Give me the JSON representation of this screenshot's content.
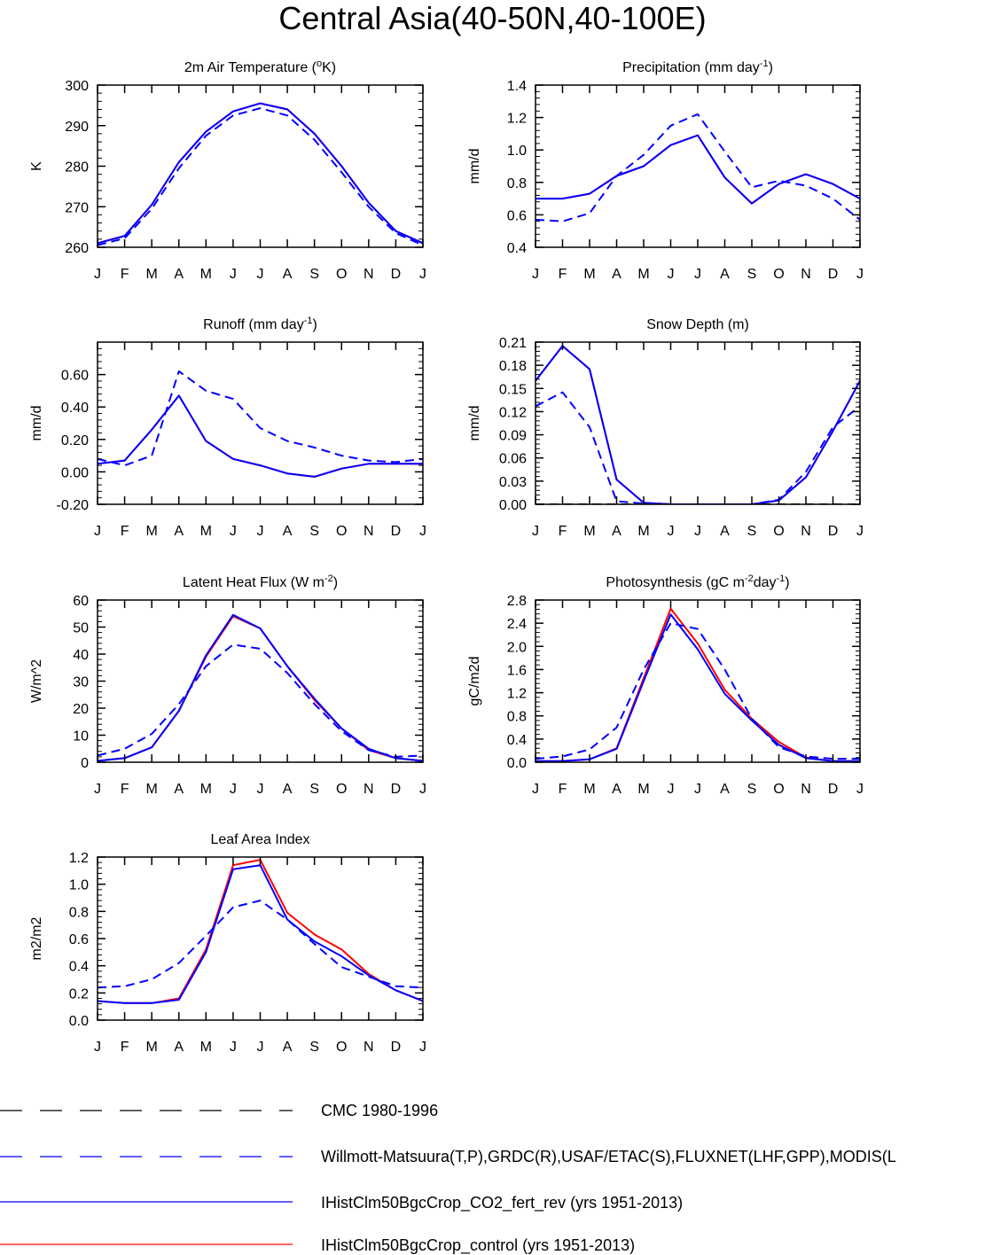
{
  "figure": {
    "title": "Central Asia(40-50N,40-100E)",
    "months": [
      "J",
      "F",
      "M",
      "A",
      "M",
      "J",
      "J",
      "A",
      "S",
      "O",
      "N",
      "D",
      "J"
    ]
  },
  "legend": [
    {
      "label": "CMC 1980-1996",
      "color": "#000000",
      "dash": "dashed"
    },
    {
      "label": "Willmott-Matsuura(T,P),GRDC(R),USAF/ETAC(S),FLUXNET(LHF,GPP),MODIS(L",
      "color": "#0000ff",
      "dash": "dashed"
    },
    {
      "label": "IHistClm50BgcCrop_CO2_fert_rev (yrs 1951-2013)",
      "color": "#0000ff",
      "dash": "solid"
    },
    {
      "label": "IHistClm50BgcCrop_control (yrs 1951-2013)",
      "color": "#ff0000",
      "dash": "solid"
    }
  ],
  "chart_data": [
    {
      "type": "line",
      "title": "2m Air Temperature (",
      "title_sup": "o",
      "title_tail": "K)",
      "ylabel": "K",
      "ylim": [
        260,
        300
      ],
      "yticks": [
        260,
        270,
        280,
        290,
        300
      ],
      "ytick_labels": [
        "260",
        "270",
        "280",
        "290",
        "300"
      ],
      "series": [
        {
          "color": "#ff0000",
          "dash": "solid",
          "values": [
            261.0,
            262.8,
            270.5,
            281.0,
            288.5,
            293.5,
            295.5,
            294.0,
            288.0,
            280.0,
            271.0,
            264.0,
            261.0
          ]
        },
        {
          "color": "#0000ff",
          "dash": "solid",
          "values": [
            261.0,
            262.8,
            270.5,
            281.0,
            288.5,
            293.5,
            295.5,
            294.0,
            288.0,
            280.0,
            271.0,
            264.0,
            261.0
          ]
        },
        {
          "color": "#0000ff",
          "dash": "dashed",
          "values": [
            260.5,
            262.2,
            269.5,
            279.5,
            287.5,
            292.5,
            294.3,
            292.5,
            286.5,
            278.5,
            270.0,
            263.5,
            260.5
          ]
        }
      ]
    },
    {
      "type": "line",
      "title": "Precipitation (mm day",
      "title_sup": "-1",
      "title_tail": ")",
      "ylabel": "mm/d",
      "ylim": [
        0.4,
        1.4
      ],
      "yticks": [
        0.4,
        0.6,
        0.8,
        1.0,
        1.2,
        1.4
      ],
      "ytick_labels": [
        "0.4",
        "0.6",
        "0.8",
        "1.0",
        "1.2",
        "1.4"
      ],
      "series": [
        {
          "color": "#ff0000",
          "dash": "solid",
          "values": [
            0.7,
            0.7,
            0.73,
            0.84,
            0.9,
            1.03,
            1.09,
            0.83,
            0.67,
            0.79,
            0.85,
            0.79,
            0.7
          ]
        },
        {
          "color": "#0000ff",
          "dash": "solid",
          "values": [
            0.7,
            0.7,
            0.73,
            0.84,
            0.9,
            1.03,
            1.09,
            0.83,
            0.67,
            0.79,
            0.85,
            0.79,
            0.7
          ]
        },
        {
          "color": "#0000ff",
          "dash": "dashed",
          "values": [
            0.57,
            0.56,
            0.61,
            0.84,
            0.97,
            1.15,
            1.22,
            0.99,
            0.77,
            0.81,
            0.78,
            0.7,
            0.57
          ]
        }
      ]
    },
    {
      "type": "line",
      "title": "Runoff (mm day",
      "title_sup": "-1",
      "title_tail": ")",
      "ylabel": "mm/d",
      "ylim": [
        -0.2,
        0.8
      ],
      "yticks": [
        -0.2,
        0.0,
        0.2,
        0.4,
        0.6
      ],
      "ytick_labels": [
        "-0.20",
        "0.00",
        "0.20",
        "0.40",
        "0.60"
      ],
      "series": [
        {
          "color": "#ff0000",
          "dash": "solid",
          "values": [
            0.05,
            0.07,
            0.26,
            0.47,
            0.19,
            0.08,
            0.04,
            -0.01,
            -0.03,
            0.02,
            0.05,
            0.05,
            0.05
          ]
        },
        {
          "color": "#0000ff",
          "dash": "solid",
          "values": [
            0.05,
            0.07,
            0.26,
            0.47,
            0.19,
            0.08,
            0.04,
            -0.01,
            -0.03,
            0.02,
            0.05,
            0.05,
            0.05
          ]
        },
        {
          "color": "#0000ff",
          "dash": "dashed",
          "values": [
            0.08,
            0.04,
            0.1,
            0.62,
            0.5,
            0.45,
            0.27,
            0.19,
            0.15,
            0.1,
            0.07,
            0.06,
            0.08
          ]
        }
      ]
    },
    {
      "type": "line",
      "title": "Snow Depth (m)",
      "title_sup": "",
      "title_tail": "",
      "ylabel": "mm/d",
      "ylim": [
        0.0,
        0.21
      ],
      "yticks": [
        0.0,
        0.03,
        0.06,
        0.09,
        0.12,
        0.15,
        0.18,
        0.21
      ],
      "ytick_labels": [
        "0.00",
        "0.03",
        "0.06",
        "0.09",
        "0.12",
        "0.15",
        "0.18",
        "0.21"
      ],
      "series": [
        {
          "color": "#000000",
          "dash": "dashed",
          "values": [
            0.0,
            0.0,
            0.0,
            0.0,
            0.0,
            0.0,
            0.0,
            0.0,
            0.0,
            0.0,
            0.0,
            0.0,
            0.0
          ]
        },
        {
          "color": "#ff0000",
          "dash": "solid",
          "values": [
            0.16,
            0.205,
            0.175,
            0.032,
            0.002,
            0.0,
            0.0,
            0.0,
            0.0,
            0.005,
            0.035,
            0.095,
            0.16
          ]
        },
        {
          "color": "#0000ff",
          "dash": "solid",
          "values": [
            0.16,
            0.205,
            0.175,
            0.032,
            0.002,
            0.0,
            0.0,
            0.0,
            0.0,
            0.005,
            0.035,
            0.095,
            0.16
          ]
        },
        {
          "color": "#0000ff",
          "dash": "dashed",
          "values": [
            0.127,
            0.145,
            0.1,
            0.004,
            0.001,
            0.0,
            0.0,
            0.0,
            0.0,
            0.006,
            0.042,
            0.1,
            0.127
          ]
        }
      ]
    },
    {
      "type": "line",
      "title": "Latent Heat Flux (W m",
      "title_sup": "-2",
      "title_tail": ")",
      "ylabel": "W/m^2",
      "ylim": [
        0,
        60
      ],
      "yticks": [
        0,
        10,
        20,
        30,
        40,
        50,
        60
      ],
      "ytick_labels": [
        "0",
        "10",
        "20",
        "30",
        "40",
        "50",
        "60"
      ],
      "series": [
        {
          "color": "#ff0000",
          "dash": "solid",
          "values": [
            0.5,
            1.5,
            5.5,
            19.0,
            39.0,
            54.0,
            49.5,
            35.5,
            23.0,
            12.5,
            4.5,
            1.5,
            0.5
          ]
        },
        {
          "color": "#0000ff",
          "dash": "solid",
          "values": [
            0.5,
            1.5,
            5.5,
            19.0,
            39.5,
            54.5,
            49.5,
            35.5,
            23.5,
            12.5,
            5.0,
            1.5,
            0.5
          ]
        },
        {
          "color": "#0000ff",
          "dash": "dashed",
          "values": [
            2.5,
            5.0,
            10.5,
            21.5,
            35.5,
            43.5,
            42.0,
            33.0,
            21.5,
            11.5,
            4.5,
            2.0,
            2.5
          ]
        }
      ]
    },
    {
      "type": "line",
      "title": "Photosynthesis (gC m",
      "title_sup": "-2",
      "title_tail": "day",
      "title_sup2": "-1",
      "title_tail2": ")",
      "ylabel": "gC/m2d",
      "ylim": [
        0.0,
        2.8
      ],
      "yticks": [
        0.0,
        0.4,
        0.8,
        1.2,
        1.6,
        2.0,
        2.4,
        2.8
      ],
      "ytick_labels": [
        "0.0",
        "0.4",
        "0.8",
        "1.2",
        "1.6",
        "2.0",
        "2.4",
        "2.8"
      ],
      "series": [
        {
          "color": "#ff0000",
          "dash": "solid",
          "values": [
            0.02,
            0.02,
            0.05,
            0.24,
            1.45,
            2.65,
            2.05,
            1.25,
            0.75,
            0.35,
            0.08,
            0.02,
            0.02
          ]
        },
        {
          "color": "#0000ff",
          "dash": "solid",
          "values": [
            0.02,
            0.02,
            0.05,
            0.23,
            1.4,
            2.55,
            1.95,
            1.18,
            0.72,
            0.3,
            0.07,
            0.02,
            0.02
          ]
        },
        {
          "color": "#0000ff",
          "dash": "dashed",
          "values": [
            0.06,
            0.1,
            0.22,
            0.6,
            1.6,
            2.4,
            2.3,
            1.6,
            0.75,
            0.26,
            0.1,
            0.06,
            0.06
          ]
        }
      ]
    },
    {
      "type": "line",
      "title": "Leaf Area Index",
      "title_sup": "",
      "title_tail": "",
      "ylabel": "m2/m2",
      "ylim": [
        0.0,
        1.2
      ],
      "yticks": [
        0.0,
        0.2,
        0.4,
        0.6,
        0.8,
        1.0,
        1.2
      ],
      "ytick_labels": [
        "0.0",
        "0.2",
        "0.4",
        "0.6",
        "0.8",
        "1.0",
        "1.2"
      ],
      "series": [
        {
          "color": "#ff0000",
          "dash": "solid",
          "values": [
            0.14,
            0.125,
            0.125,
            0.16,
            0.52,
            1.14,
            1.18,
            0.79,
            0.63,
            0.52,
            0.34,
            0.22,
            0.14
          ]
        },
        {
          "color": "#0000ff",
          "dash": "solid",
          "values": [
            0.14,
            0.125,
            0.125,
            0.15,
            0.5,
            1.11,
            1.14,
            0.74,
            0.58,
            0.47,
            0.33,
            0.22,
            0.14
          ]
        },
        {
          "color": "#0000ff",
          "dash": "dashed",
          "values": [
            0.24,
            0.25,
            0.3,
            0.42,
            0.62,
            0.83,
            0.88,
            0.74,
            0.56,
            0.39,
            0.32,
            0.25,
            0.24
          ]
        }
      ]
    }
  ]
}
